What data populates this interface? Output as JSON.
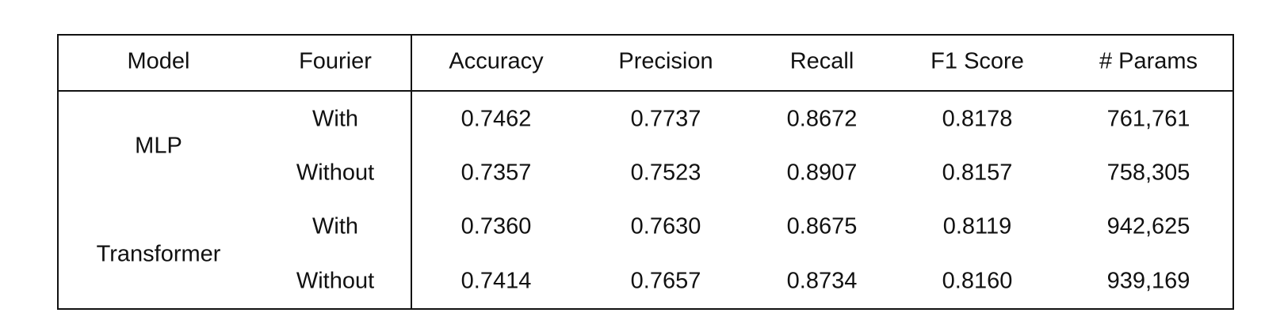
{
  "table": {
    "header": [
      "Model",
      "Fourier",
      "Accuracy",
      "Precision",
      "Recall",
      "F1 Score",
      "# Params"
    ],
    "groups": [
      {
        "model": "MLP",
        "rows": [
          [
            "With",
            "0.7462",
            "0.7737",
            "0.8672",
            "0.8178",
            "761,761"
          ],
          [
            "Without",
            "0.7357",
            "0.7523",
            "0.8907",
            "0.8157",
            "758,305"
          ]
        ]
      },
      {
        "model": "Transformer",
        "rows": [
          [
            "With",
            "0.7360",
            "0.7630",
            "0.8675",
            "0.8119",
            "942,625"
          ],
          [
            "Without",
            "0.7414",
            "0.7657",
            "0.8734",
            "0.8160",
            "939,169"
          ]
        ]
      }
    ]
  }
}
